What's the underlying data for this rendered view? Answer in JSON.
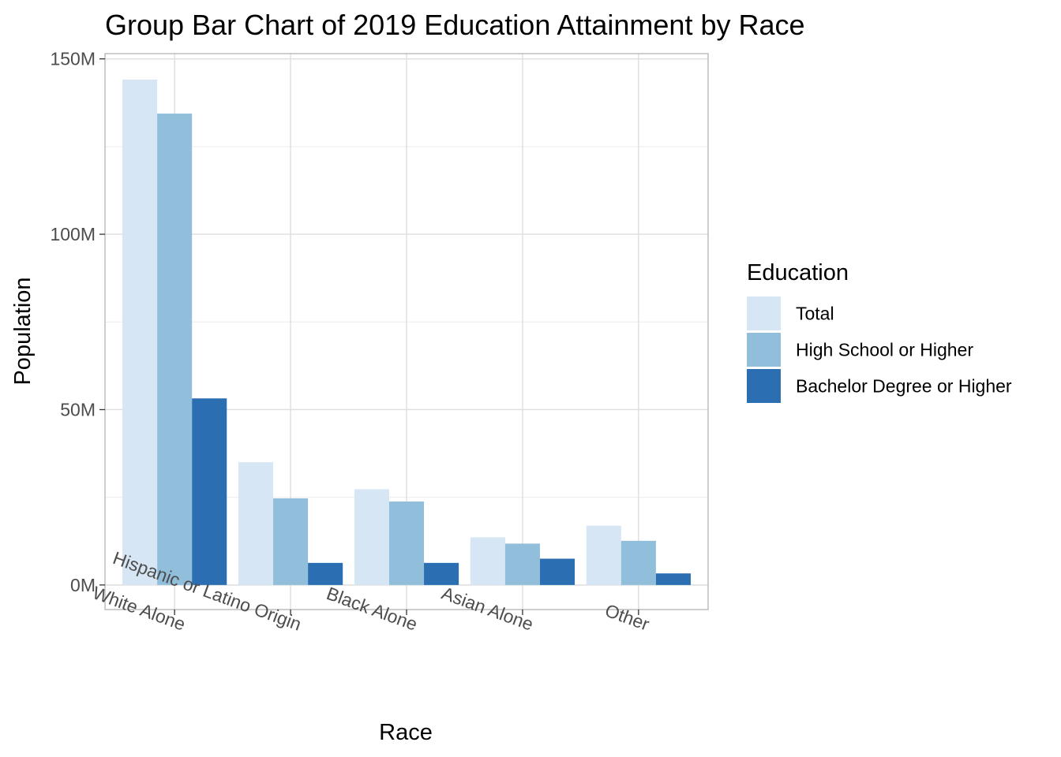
{
  "chart_data": {
    "type": "bar",
    "title": "Group Bar Chart of 2019 Education Attainment by Race",
    "xlabel": "Race",
    "ylabel": "Population",
    "categories": [
      "White Alone",
      "Hispanic or Latino Origin",
      "Black Alone",
      "Asian Alone",
      "Other"
    ],
    "series": [
      {
        "name": "Total",
        "color": "#d6e6f4",
        "values": [
          144.1,
          35.0,
          27.3,
          13.6,
          16.9
        ]
      },
      {
        "name": "High School or Higher",
        "color": "#91bfdb",
        "values": [
          134.4,
          24.7,
          23.8,
          11.8,
          12.6
        ]
      },
      {
        "name": "Bachelor Degree or Higher",
        "color": "#2b6fb2",
        "values": [
          53.2,
          6.3,
          6.3,
          7.5,
          3.3
        ]
      }
    ],
    "ylim": [
      -7,
      151.5
    ],
    "yticks": [
      0,
      50,
      100,
      150
    ],
    "ytick_labels": [
      "0M",
      "50M",
      "100M",
      "150M"
    ],
    "grid": true,
    "legend": {
      "title": "Education",
      "placement": "right"
    }
  }
}
